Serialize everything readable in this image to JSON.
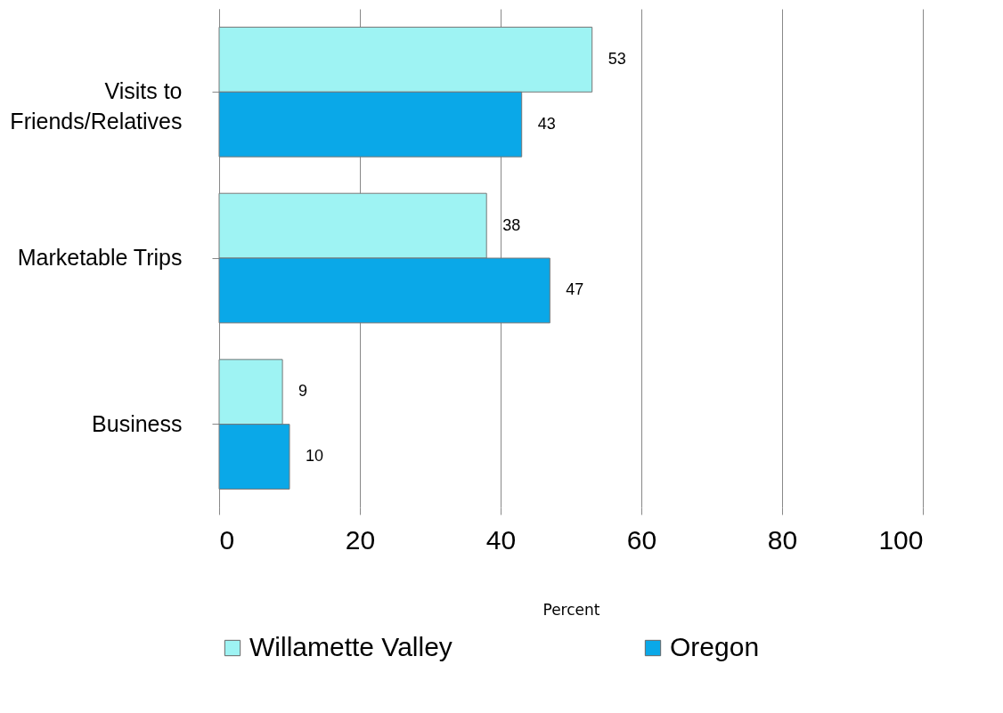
{
  "chart_data": {
    "type": "bar",
    "orientation": "horizontal",
    "categories": [
      "Visits to Friends/Relatives",
      "Marketable Trips",
      "Business"
    ],
    "series": [
      {
        "name": "Willamette Valley",
        "color": "#9ef3f3",
        "values": [
          53,
          38,
          9
        ]
      },
      {
        "name": "Oregon",
        "color": "#0aa8e8",
        "values": [
          43,
          47,
          10
        ]
      }
    ],
    "xlabel": "Percent",
    "xlim": [
      0,
      100
    ],
    "xticks": [
      0,
      20,
      40,
      60,
      80,
      100
    ],
    "grid": "x",
    "legend": "bottom",
    "data_labels": true
  }
}
